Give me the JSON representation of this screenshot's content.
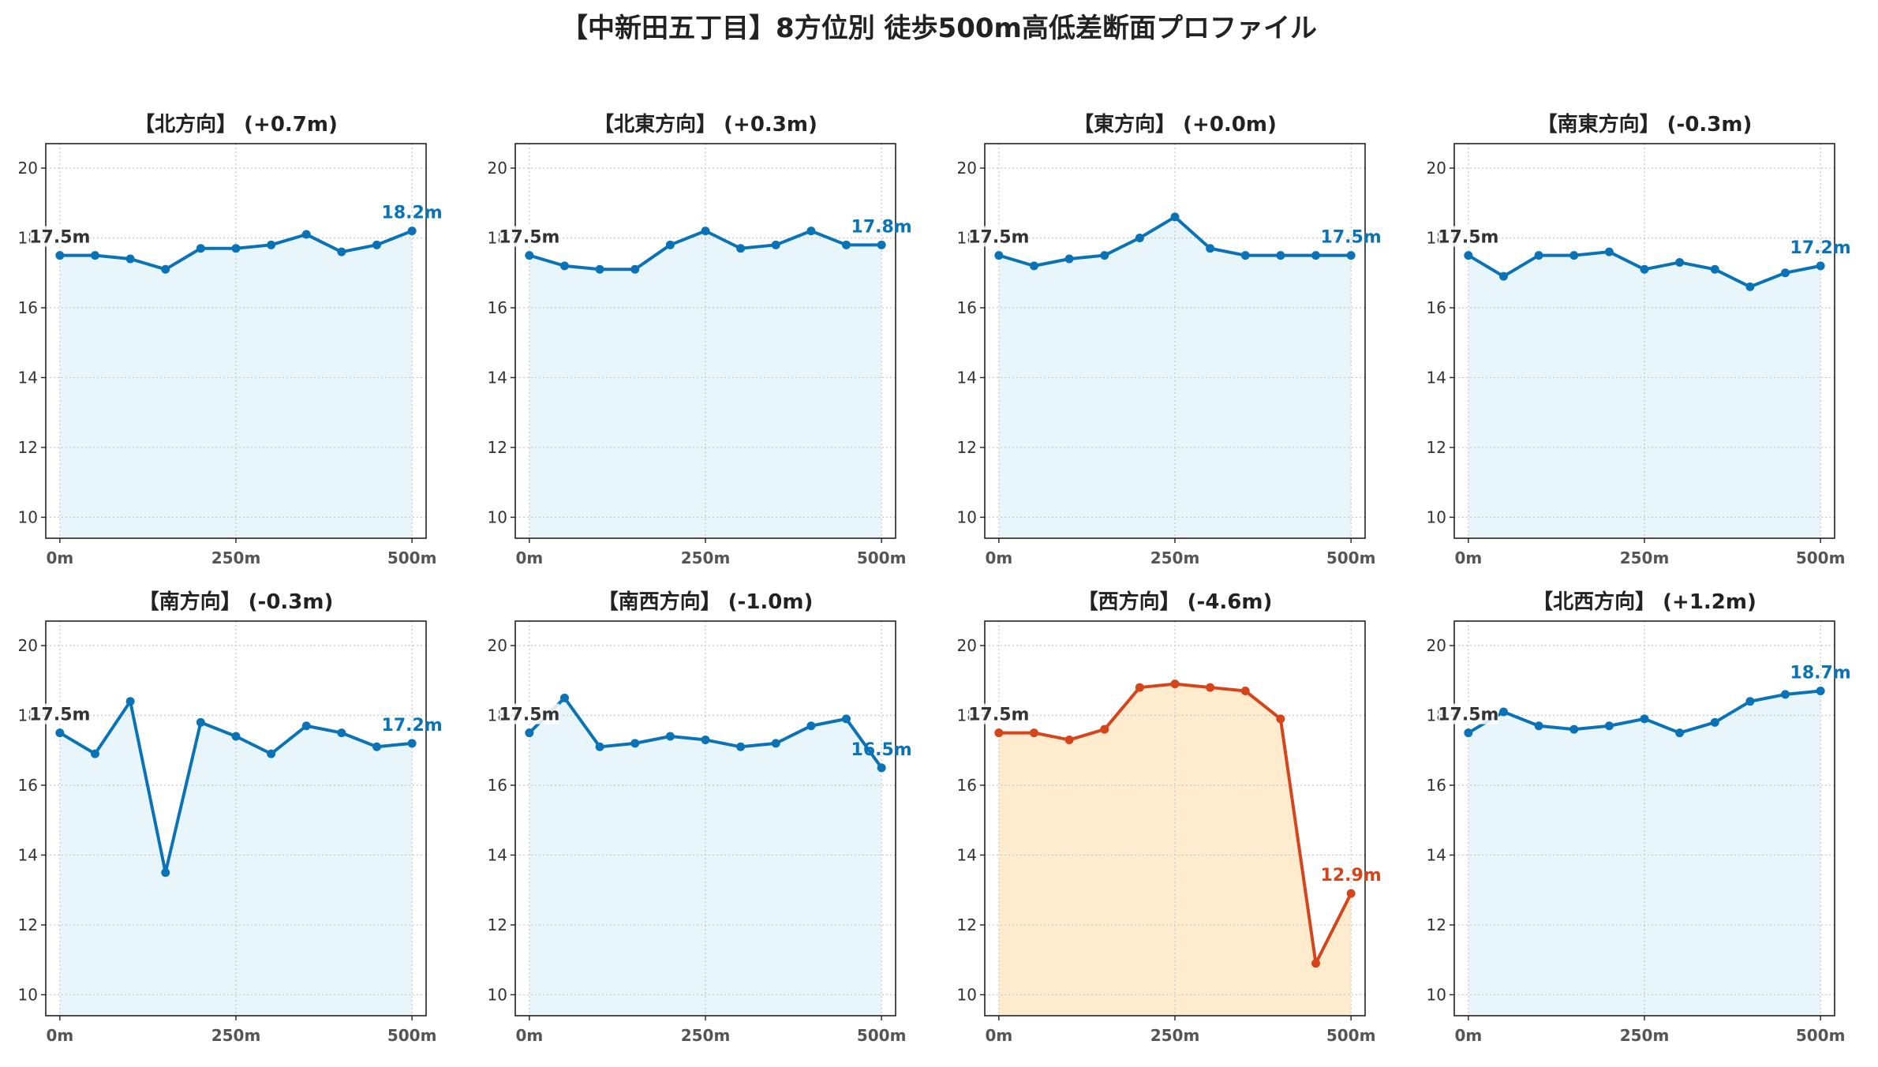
{
  "title": "【中新田五丁目】8方位別 徒歩500m高低差断面プロファイル",
  "chart_data": [
    {
      "type": "line",
      "title": "【北方向】 (+0.7m)",
      "x": [
        0,
        50,
        100,
        150,
        200,
        250,
        300,
        350,
        400,
        450,
        500
      ],
      "values": [
        17.5,
        17.5,
        17.4,
        17.1,
        17.7,
        17.7,
        17.8,
        18.1,
        17.6,
        17.8,
        18.2
      ],
      "start_label": "17.5m",
      "end_label": "18.2m",
      "xticks": [
        "0m",
        "250m",
        "500m"
      ],
      "yticks": [
        10,
        12,
        14,
        16,
        18,
        20
      ],
      "ylim": [
        9.4,
        20.7
      ],
      "xlim": [
        -20,
        520
      ],
      "color": "#0a73b8",
      "fill": "#e8f6fb",
      "grid": true
    },
    {
      "type": "line",
      "title": "【北東方向】 (+0.3m)",
      "x": [
        0,
        50,
        100,
        150,
        200,
        250,
        300,
        350,
        400,
        450,
        500
      ],
      "values": [
        17.5,
        17.2,
        17.1,
        17.1,
        17.8,
        18.2,
        17.7,
        17.8,
        18.2,
        17.8,
        17.8
      ],
      "start_label": "17.5m",
      "end_label": "17.8m",
      "xticks": [
        "0m",
        "250m",
        "500m"
      ],
      "yticks": [
        10,
        12,
        14,
        16,
        18,
        20
      ],
      "ylim": [
        9.4,
        20.7
      ],
      "xlim": [
        -20,
        520
      ],
      "color": "#0a73b8",
      "fill": "#e8f6fb",
      "grid": true
    },
    {
      "type": "line",
      "title": "【東方向】 (+0.0m)",
      "x": [
        0,
        50,
        100,
        150,
        200,
        250,
        300,
        350,
        400,
        450,
        500
      ],
      "values": [
        17.5,
        17.2,
        17.4,
        17.5,
        18.0,
        18.6,
        17.7,
        17.5,
        17.5,
        17.5,
        17.5
      ],
      "start_label": "17.5m",
      "end_label": "17.5m",
      "xticks": [
        "0m",
        "250m",
        "500m"
      ],
      "yticks": [
        10,
        12,
        14,
        16,
        18,
        20
      ],
      "ylim": [
        9.4,
        20.7
      ],
      "xlim": [
        -20,
        520
      ],
      "color": "#0a73b8",
      "fill": "#e8f6fb",
      "grid": true
    },
    {
      "type": "line",
      "title": "【南東方向】 (-0.3m)",
      "x": [
        0,
        50,
        100,
        150,
        200,
        250,
        300,
        350,
        400,
        450,
        500
      ],
      "values": [
        17.5,
        16.9,
        17.5,
        17.5,
        17.6,
        17.1,
        17.3,
        17.1,
        16.6,
        17.0,
        17.2
      ],
      "start_label": "17.5m",
      "end_label": "17.2m",
      "xticks": [
        "0m",
        "250m",
        "500m"
      ],
      "yticks": [
        10,
        12,
        14,
        16,
        18,
        20
      ],
      "ylim": [
        9.4,
        20.7
      ],
      "xlim": [
        -20,
        520
      ],
      "color": "#0a73b8",
      "fill": "#e8f6fb",
      "grid": true
    },
    {
      "type": "line",
      "title": "【南方向】 (-0.3m)",
      "x": [
        0,
        50,
        100,
        150,
        200,
        250,
        300,
        350,
        400,
        450,
        500
      ],
      "values": [
        17.5,
        16.9,
        18.4,
        13.5,
        17.8,
        17.4,
        16.9,
        17.7,
        17.5,
        17.1,
        17.2
      ],
      "start_label": "17.5m",
      "end_label": "17.2m",
      "xticks": [
        "0m",
        "250m",
        "500m"
      ],
      "yticks": [
        10,
        12,
        14,
        16,
        18,
        20
      ],
      "ylim": [
        9.4,
        20.7
      ],
      "xlim": [
        -20,
        520
      ],
      "color": "#0a73b8",
      "fill": "#e8f6fb",
      "grid": true
    },
    {
      "type": "line",
      "title": "【南西方向】 (-1.0m)",
      "x": [
        0,
        50,
        100,
        150,
        200,
        250,
        300,
        350,
        400,
        450,
        500
      ],
      "values": [
        17.5,
        18.5,
        17.1,
        17.2,
        17.4,
        17.3,
        17.1,
        17.2,
        17.7,
        17.9,
        16.5
      ],
      "start_label": "17.5m",
      "end_label": "16.5m",
      "xticks": [
        "0m",
        "250m",
        "500m"
      ],
      "yticks": [
        10,
        12,
        14,
        16,
        18,
        20
      ],
      "ylim": [
        9.4,
        20.7
      ],
      "xlim": [
        -20,
        520
      ],
      "color": "#0a73b8",
      "fill": "#e8f6fb",
      "grid": true
    },
    {
      "type": "line",
      "title": "【西方向】 (-4.6m)",
      "x": [
        0,
        50,
        100,
        150,
        200,
        250,
        300,
        350,
        400,
        450,
        500
      ],
      "values": [
        17.5,
        17.5,
        17.3,
        17.6,
        18.8,
        18.9,
        18.8,
        18.7,
        17.9,
        10.9,
        12.9
      ],
      "start_label": "17.5m",
      "end_label": "12.9m",
      "xticks": [
        "0m",
        "250m",
        "500m"
      ],
      "yticks": [
        10,
        12,
        14,
        16,
        18,
        20
      ],
      "ylim": [
        9.4,
        20.7
      ],
      "xlim": [
        -20,
        520
      ],
      "color": "#d5441a",
      "fill": "#ffeccf",
      "grid": true
    },
    {
      "type": "line",
      "title": "【北西方向】 (+1.2m)",
      "x": [
        0,
        50,
        100,
        150,
        200,
        250,
        300,
        350,
        400,
        450,
        500
      ],
      "values": [
        17.5,
        18.1,
        17.7,
        17.6,
        17.7,
        17.9,
        17.5,
        17.8,
        18.4,
        18.6,
        18.7
      ],
      "start_label": "17.5m",
      "end_label": "18.7m",
      "xticks": [
        "0m",
        "250m",
        "500m"
      ],
      "yticks": [
        10,
        12,
        14,
        16,
        18,
        20
      ],
      "ylim": [
        9.4,
        20.7
      ],
      "xlim": [
        -20,
        520
      ],
      "color": "#0a73b8",
      "fill": "#e8f6fb",
      "grid": true
    }
  ]
}
